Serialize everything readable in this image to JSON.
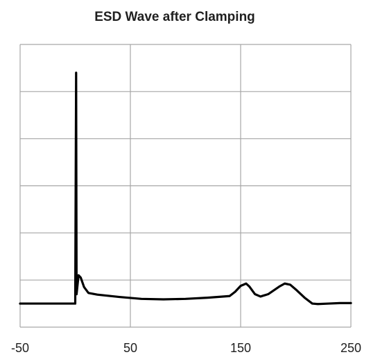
{
  "chart_data": {
    "type": "line",
    "title": "ESD Wave after Clamping",
    "xlabel": "",
    "ylabel": "",
    "xlim": [
      -50,
      250
    ],
    "ylim": [
      -1,
      11
    ],
    "x_tick_labels": [
      "-50",
      "50",
      "150",
      "250"
    ],
    "x_tick_values": [
      -50,
      50,
      150,
      250
    ],
    "y_gridlines": [
      -1,
      1,
      3,
      5,
      7,
      9,
      11
    ],
    "x_gridlines": [
      -50,
      50,
      150,
      250
    ],
    "y_tick_labels_shown": false,
    "grid": true,
    "legend": "none",
    "series": [
      {
        "color": "#000000",
        "points": [
          [
            -50,
            0.0
          ],
          [
            -10,
            0.0
          ],
          [
            0,
            0.0
          ],
          [
            0.8,
            9.8
          ],
          [
            1.2,
            0.4
          ],
          [
            3,
            1.2
          ],
          [
            5,
            1.1
          ],
          [
            8,
            0.7
          ],
          [
            12,
            0.45
          ],
          [
            20,
            0.38
          ],
          [
            40,
            0.28
          ],
          [
            60,
            0.2
          ],
          [
            80,
            0.18
          ],
          [
            100,
            0.2
          ],
          [
            120,
            0.25
          ],
          [
            140,
            0.32
          ],
          [
            145,
            0.5
          ],
          [
            150,
            0.75
          ],
          [
            155,
            0.85
          ],
          [
            158,
            0.72
          ],
          [
            163,
            0.4
          ],
          [
            168,
            0.3
          ],
          [
            175,
            0.4
          ],
          [
            185,
            0.72
          ],
          [
            190,
            0.85
          ],
          [
            195,
            0.8
          ],
          [
            200,
            0.6
          ],
          [
            208,
            0.25
          ],
          [
            215,
            0.0
          ],
          [
            220,
            -0.02
          ],
          [
            230,
            0.0
          ],
          [
            240,
            0.02
          ],
          [
            250,
            0.02
          ]
        ]
      }
    ]
  }
}
